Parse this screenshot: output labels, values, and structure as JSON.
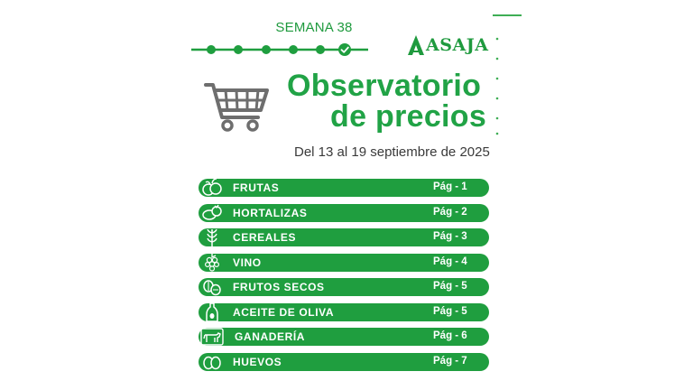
{
  "header": {
    "week": "SEMANA 38"
  },
  "progress": {
    "completed_steps": 5,
    "total_steps": 6,
    "current_step": 6
  },
  "logo": {
    "text": "ASAJA"
  },
  "title": {
    "line1": "Observatorio",
    "line2": "de precios"
  },
  "dates": "Del 13 al 19 septiembre de 2025",
  "icons": {
    "cart": "shopping-cart-icon"
  },
  "colors": {
    "brand_green": "#1f9e3f",
    "title_green": "#21a346",
    "text_dark": "#3a3a3a"
  },
  "sections": [
    {
      "label": "FRUTAS",
      "page": "Pág - 1",
      "icon": "fruits-icon"
    },
    {
      "label": "HORTALIZAS",
      "page": "Pág - 2",
      "icon": "vegetables-icon"
    },
    {
      "label": "CEREALES",
      "page": "Pág - 3",
      "icon": "wheat-icon"
    },
    {
      "label": "VINO",
      "page": "Pág - 4",
      "icon": "grapes-icon"
    },
    {
      "label": "FRUTOS SECOS",
      "page": "Pág - 5",
      "icon": "nuts-icon"
    },
    {
      "label": "ACEITE DE OLIVA",
      "page": "Pág - 5",
      "icon": "olive-oil-icon"
    },
    {
      "label": "GANADERÍA",
      "page": "Pág - 6",
      "icon": "cow-icon"
    },
    {
      "label": "HUEVOS",
      "page": "Pág - 7",
      "icon": "eggs-icon"
    }
  ]
}
